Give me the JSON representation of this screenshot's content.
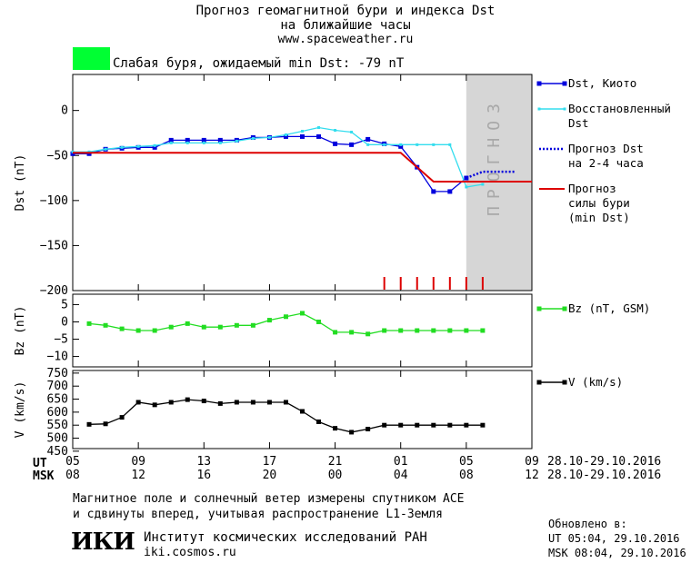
{
  "header": {
    "title1": "Прогноз геомагнитной бури и индекса Dst",
    "title2": "на ближайшие часы",
    "url": "www.spaceweather.ru",
    "status_text": "Слабая буря, ожидаемый min Dst: -79 nT",
    "status_color": "#00ff33"
  },
  "footer": {
    "desc1": "Магнитное поле и солнечный ветер измерены спутником ACE",
    "desc2": "и сдвинуты вперед, учитывая распространение L1-Земля",
    "institute": "Институт космических исследований РАН",
    "site": "iki.cosmos.ru",
    "logo_text": "ИКИ",
    "updated_label": "Обновлено в:",
    "updated_ut": "UT  05:04, 29.10.2016",
    "updated_msk": "MSK 08:04, 29.10.2016"
  },
  "time_axis": {
    "ut_label": "UT",
    "msk_label": "MSK",
    "ut_ticks": [
      "05",
      "09",
      "13",
      "17",
      "21",
      "01",
      "05",
      "09"
    ],
    "msk_ticks": [
      "08",
      "12",
      "16",
      "20",
      "00",
      "04",
      "08",
      "12"
    ],
    "tick_hours": [
      0,
      4,
      8,
      12,
      16,
      20,
      24,
      28
    ],
    "date_range": "28.10-29.10.2016",
    "x_range": [
      0,
      28
    ]
  },
  "chart_data": [
    {
      "type": "line",
      "ylabel": "Dst (nT)",
      "ylim": [
        -200,
        40
      ],
      "yticks": [
        0,
        -50,
        -100,
        -150,
        -200
      ],
      "forecast_zone": {
        "label": "ПРОГНОЗ",
        "x_start": 24,
        "x_end": 28
      },
      "storm_markers_x": [
        19,
        20,
        21,
        22,
        23,
        24,
        25
      ],
      "series": [
        {
          "name": "Dst, Киото",
          "color": "#0000dd",
          "marker": "square",
          "x": [
            0,
            1,
            2,
            3,
            4,
            5,
            6,
            7,
            8,
            9,
            10,
            11,
            12,
            13,
            14,
            15,
            16,
            17,
            18,
            19,
            20,
            21,
            22,
            23,
            24
          ],
          "y": [
            -48,
            -48,
            -43,
            -42,
            -41,
            -41,
            -33,
            -33,
            -33,
            -33,
            -33,
            -30,
            -30,
            -29,
            -29,
            -29,
            -37,
            -38,
            -32,
            -37,
            -40,
            -63,
            -90,
            -90,
            -75
          ]
        },
        {
          "name": "Восстановленный Dst",
          "color": "#33ddee",
          "marker": "small-square",
          "x": [
            0,
            1,
            2,
            3,
            4,
            5,
            6,
            7,
            8,
            9,
            10,
            11,
            12,
            13,
            14,
            15,
            16,
            17,
            18,
            19,
            20,
            21,
            22,
            23,
            24,
            25
          ],
          "y": [
            -46,
            -46,
            -43,
            -41,
            -40,
            -39,
            -36,
            -36,
            -36,
            -36,
            -34,
            -31,
            -30,
            -27,
            -23,
            -19,
            -22,
            -24,
            -38,
            -38,
            -38,
            -38,
            -38,
            -38,
            -85,
            -82
          ]
        },
        {
          "name": "Прогноз Dst на 2-4 часа",
          "color": "#0000dd",
          "style": "dotted",
          "x": [
            24,
            25,
            26,
            27
          ],
          "y": [
            -75,
            -68,
            -68,
            -68
          ]
        },
        {
          "name": "Прогноз силы бури (min Dst)",
          "color": "#dd0000",
          "style": "solid",
          "x": [
            0,
            20,
            22,
            28
          ],
          "y": [
            -47,
            -47,
            -79,
            -79
          ]
        }
      ]
    },
    {
      "type": "line",
      "ylabel": "Bz (nT)",
      "ylim": [
        -13,
        8
      ],
      "yticks": [
        5,
        0,
        -5,
        -10
      ],
      "series": [
        {
          "name": "Bz (nT, GSM)",
          "color": "#22dd22",
          "marker": "square",
          "x": [
            1,
            2,
            3,
            4,
            5,
            6,
            7,
            8,
            9,
            10,
            11,
            12,
            13,
            14,
            15,
            16,
            17,
            18,
            19,
            20,
            21,
            22,
            23,
            24,
            25
          ],
          "y": [
            -0.5,
            -1,
            -2,
            -2.5,
            -2.5,
            -1.5,
            -0.5,
            -1.5,
            -1.5,
            -1,
            -1,
            0.5,
            1.5,
            2.5,
            0,
            -3,
            -3,
            -3.5,
            -2.5,
            -2.5,
            -2.5,
            -2.5,
            -2.5,
            -2.5,
            -2.5
          ]
        }
      ]
    },
    {
      "type": "line",
      "ylabel": "V (km/s)",
      "ylim": [
        460,
        760
      ],
      "yticks": [
        750,
        700,
        650,
        600,
        550,
        500,
        450
      ],
      "ytick_labels": [
        "750",
        "700",
        "650",
        "600",
        "550",
        "500",
        "450"
      ],
      "series": [
        {
          "name": "V (km/s)",
          "color": "#000000",
          "marker": "square",
          "x": [
            1,
            2,
            3,
            4,
            5,
            6,
            7,
            8,
            9,
            10,
            11,
            12,
            13,
            14,
            15,
            16,
            17,
            18,
            19,
            20,
            21,
            22,
            23,
            24,
            25
          ],
          "y": [
            553,
            555,
            580,
            638,
            628,
            638,
            648,
            643,
            633,
            638,
            638,
            638,
            638,
            603,
            563,
            538,
            523,
            535,
            550,
            550,
            550,
            550,
            550,
            550,
            550
          ]
        }
      ]
    }
  ]
}
